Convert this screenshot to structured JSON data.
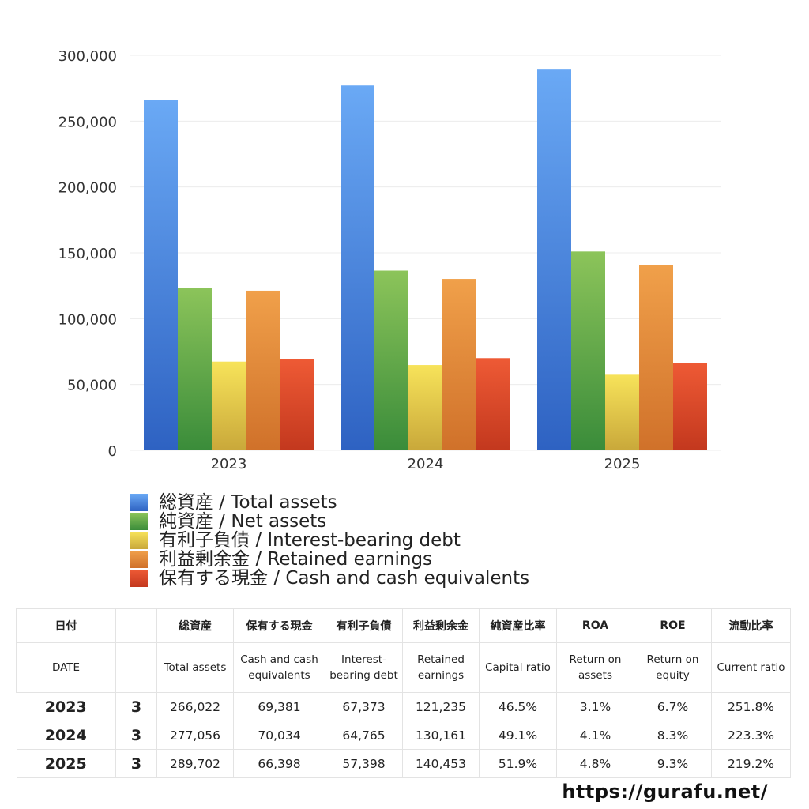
{
  "chart_data": {
    "type": "bar",
    "categories": [
      "2023",
      "2024",
      "2025"
    ],
    "ylim": [
      0,
      300000
    ],
    "yticks": [
      0,
      50000,
      100000,
      150000,
      200000,
      250000,
      300000
    ],
    "ytick_labels": [
      "0",
      "50,000",
      "100,000",
      "150,000",
      "200,000",
      "250,000",
      "300,000"
    ],
    "grid": true,
    "legend_position": "bottom",
    "series": [
      {
        "name": "総資産 / Total assets",
        "values": [
          266022,
          277056,
          289702
        ],
        "color_top": "#6aa9f5",
        "color_bottom": "#2e62c2"
      },
      {
        "name": "純資産 / Net assets",
        "values": [
          123500,
          136500,
          151000
        ],
        "color_top": "#8cc45a",
        "color_bottom": "#3a8c3a"
      },
      {
        "name": "有利子負債 / Interest-bearing debt",
        "values": [
          67373,
          64765,
          57398
        ],
        "color_top": "#f7e35a",
        "color_bottom": "#c9a83a"
      },
      {
        "name": "利益剰余金 / Retained earnings",
        "values": [
          121235,
          130161,
          140453
        ],
        "color_top": "#f0a04a",
        "color_bottom": "#d0712a"
      },
      {
        "name": "保有する現金 /  Cash and cash equivalents",
        "values": [
          69381,
          70034,
          66398
        ],
        "color_top": "#ee5a35",
        "color_bottom": "#c3381e"
      }
    ]
  },
  "table": {
    "header_jp": [
      "日付",
      "",
      "総資産",
      "保有する現金",
      "有利子負債",
      "利益剰余金",
      "純資産比率",
      "ROA",
      "ROE",
      "流動比率"
    ],
    "header_en": [
      "DATE",
      "",
      "Total assets",
      "Cash and cash equivalents",
      "Interest-bearing debt",
      "Retained earnings",
      "Capital ratio",
      "Return on assets",
      "Return on equity",
      "Current ratio"
    ],
    "rows": [
      [
        "2023",
        "3",
        "266,022",
        "69,381",
        "67,373",
        "121,235",
        "46.5%",
        "3.1%",
        "6.7%",
        "251.8%"
      ],
      [
        "2024",
        "3",
        "277,056",
        "70,034",
        "64,765",
        "130,161",
        "49.1%",
        "4.1%",
        "8.3%",
        "223.3%"
      ],
      [
        "2025",
        "3",
        "289,702",
        "66,398",
        "57,398",
        "140,453",
        "51.9%",
        "4.8%",
        "9.3%",
        "219.2%"
      ]
    ]
  },
  "footer": {
    "url": "https://gurafu.net/"
  }
}
